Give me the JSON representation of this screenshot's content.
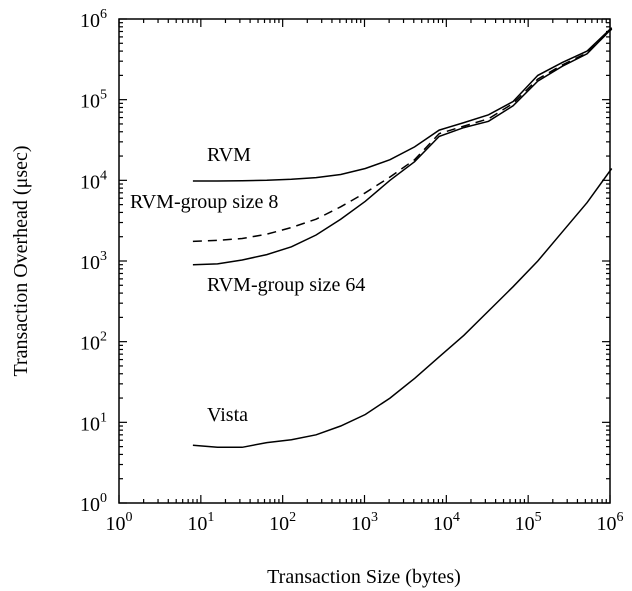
{
  "chart_data": {
    "type": "line",
    "xlabel": "Transaction Size (bytes)",
    "ylabel": "Transaction Overhead (μsec)",
    "xscale": "log",
    "yscale": "log",
    "xlim": [
      1,
      1000000
    ],
    "ylim": [
      1,
      1000000
    ],
    "grid": false,
    "x_ticks": [
      {
        "base": "10",
        "exp": "0"
      },
      {
        "base": "10",
        "exp": "1"
      },
      {
        "base": "10",
        "exp": "2"
      },
      {
        "base": "10",
        "exp": "3"
      },
      {
        "base": "10",
        "exp": "4"
      },
      {
        "base": "10",
        "exp": "5"
      },
      {
        "base": "10",
        "exp": "6"
      }
    ],
    "y_ticks": [
      {
        "base": "10",
        "exp": "0"
      },
      {
        "base": "10",
        "exp": "1"
      },
      {
        "base": "10",
        "exp": "2"
      },
      {
        "base": "10",
        "exp": "3"
      },
      {
        "base": "10",
        "exp": "4"
      },
      {
        "base": "10",
        "exp": "5"
      },
      {
        "base": "10",
        "exp": "6"
      }
    ],
    "x": [
      8,
      16,
      32,
      64,
      128,
      256,
      512,
      1024,
      2048,
      4096,
      8192,
      16384,
      32768,
      65536,
      131072,
      262144,
      524288,
      1048576
    ],
    "series": [
      {
        "name": "RVM",
        "style": "solid",
        "values": [
          9800,
          9800,
          9900,
          10000,
          10300,
          10800,
          11800,
          14000,
          18000,
          26000,
          42000,
          52000,
          65000,
          95000,
          200000,
          290000,
          400000,
          780000
        ]
      },
      {
        "name": "RVM-group size 8",
        "style": "dashed",
        "values": [
          1750,
          1800,
          1900,
          2150,
          2600,
          3300,
          4700,
          7000,
          11000,
          18000,
          38000,
          47000,
          58000,
          90000,
          180000,
          270000,
          380000,
          750000
        ]
      },
      {
        "name": "RVM-group size 64",
        "style": "solid",
        "values": [
          900,
          920,
          1030,
          1200,
          1500,
          2100,
          3300,
          5500,
          10000,
          17000,
          35000,
          45000,
          54000,
          84000,
          170000,
          260000,
          370000,
          760000
        ]
      },
      {
        "name": "Vista",
        "style": "solid",
        "values": [
          5.2,
          4.9,
          4.9,
          5.6,
          6.1,
          7.0,
          9.0,
          12.5,
          20,
          35,
          65,
          120,
          240,
          480,
          1000,
          2300,
          5300,
          14000
        ]
      }
    ],
    "annotations": [
      {
        "text": "RVM",
        "series": "RVM"
      },
      {
        "text": "RVM-group size 8",
        "series": "RVM-group size 8"
      },
      {
        "text": "RVM-group size 64",
        "series": "RVM-group size 64"
      },
      {
        "text": "Vista",
        "series": "Vista"
      }
    ]
  }
}
